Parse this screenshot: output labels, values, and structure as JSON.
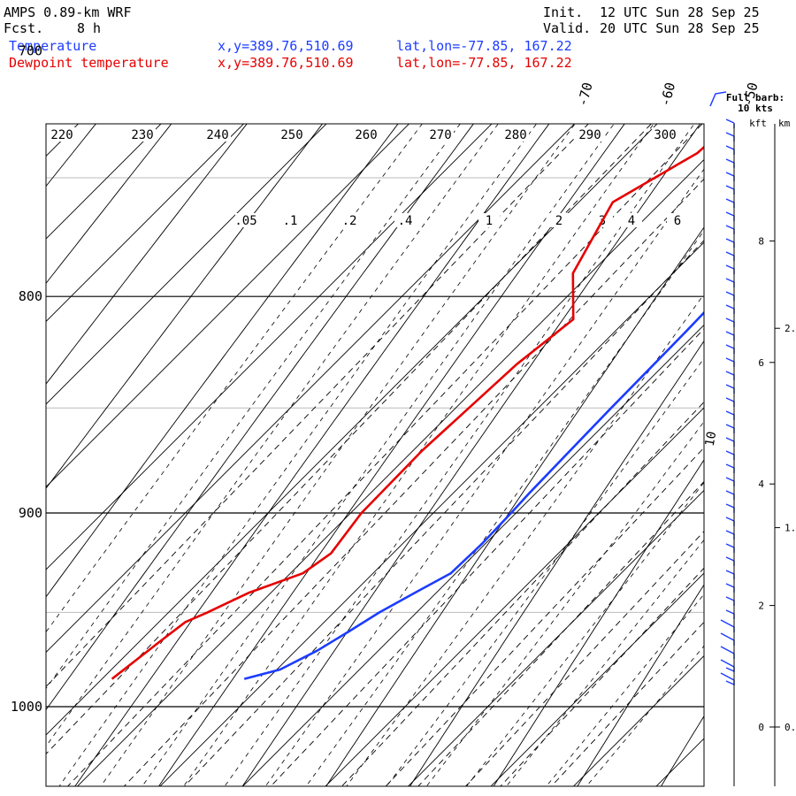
{
  "header": {
    "model": "AMPS 0.89-km WRF",
    "fcst_label": "Fcst.",
    "fcst_value": "8 h",
    "init_label": "Init.",
    "init_value": "12 UTC Sun 28 Sep 25",
    "valid_label": "Valid.",
    "valid_value": "20 UTC Sun 28 Sep 25"
  },
  "legend": {
    "temp_label": "Temperature",
    "dew_label": "Dewpoint temperature",
    "xy_label": "x,y=389.76,510.69",
    "latlon_label": "lat,lon=-77.85, 167.22"
  },
  "barb_legend": {
    "line1": "Full barb:",
    "line2": "10 kts"
  },
  "height_axis": {
    "kft_label": "kft",
    "km_label": "km"
  },
  "colors": {
    "temperature": "#1c3cff",
    "dewpoint": "#e60000",
    "barb": "#1c3cff"
  },
  "chart_data": {
    "type": "line",
    "title": "Skew-T log-P sounding",
    "xlabel": "Temperature (°C, skewed)",
    "ylabel": "Pressure (hPa)",
    "pressure_ticks": [
      700,
      800,
      900,
      1000
    ],
    "pressure_range": [
      700,
      1040
    ],
    "temperature_ticks": [
      -70,
      -60,
      -50,
      -40,
      -30,
      -20,
      -10,
      0
    ],
    "potential_temperature_labels": [
      220,
      230,
      240,
      250,
      260,
      270,
      280,
      290,
      300
    ],
    "mixing_ratio_labels": [
      ".05",
      ".1",
      ".2",
      ".4",
      "1",
      "2",
      "3",
      "4",
      "6"
    ],
    "moist_adiabat_label": "10",
    "series": [
      {
        "name": "Temperature",
        "pressure": [
          700,
          710,
          730,
          740,
          750,
          760,
          770,
          790,
          800,
          815,
          830,
          850,
          870,
          890,
          900,
          915,
          930,
          940,
          950,
          960,
          970,
          980,
          985
        ],
        "values": [
          -19.7,
          -19.9,
          -20.4,
          -20.8,
          -21.4,
          -21.9,
          -22.0,
          -21.8,
          -21.6,
          -21.4,
          -21.3,
          -21.2,
          -21.0,
          -20.8,
          -20.6,
          -20.4,
          -20.6,
          -22.6,
          -24.5,
          -25.9,
          -27.4,
          -29.6,
          -32.8
        ]
      },
      {
        "name": "Dewpoint temperature",
        "pressure": [
          700,
          710,
          740,
          760,
          790,
          810,
          820,
          830,
          870,
          900,
          920,
          930,
          940,
          950,
          955,
          965,
          985
        ],
        "values": [
          -41.0,
          -40.5,
          -41.6,
          -45.9,
          -42.1,
          -36.5,
          -37.2,
          -37.9,
          -38.9,
          -38.7,
          -37.5,
          -38.5,
          -42.7,
          -45.3,
          -46.8,
          -47.5,
          -48.8
        ]
      }
    ],
    "height_ticks_kft": [
      0,
      2,
      4,
      6,
      8
    ],
    "height_ticks_km": [
      "0.",
      "1.",
      "2."
    ],
    "wind_barbs_kts": [
      5,
      5,
      5,
      5,
      5,
      5,
      5,
      5,
      5,
      5,
      5,
      5,
      5,
      5,
      5,
      5,
      5,
      5,
      5,
      5,
      5,
      5,
      5,
      5,
      5,
      5,
      5,
      5,
      5,
      5,
      5,
      5,
      5,
      5,
      5,
      5,
      5,
      5,
      10,
      10,
      10,
      15,
      15
    ]
  }
}
